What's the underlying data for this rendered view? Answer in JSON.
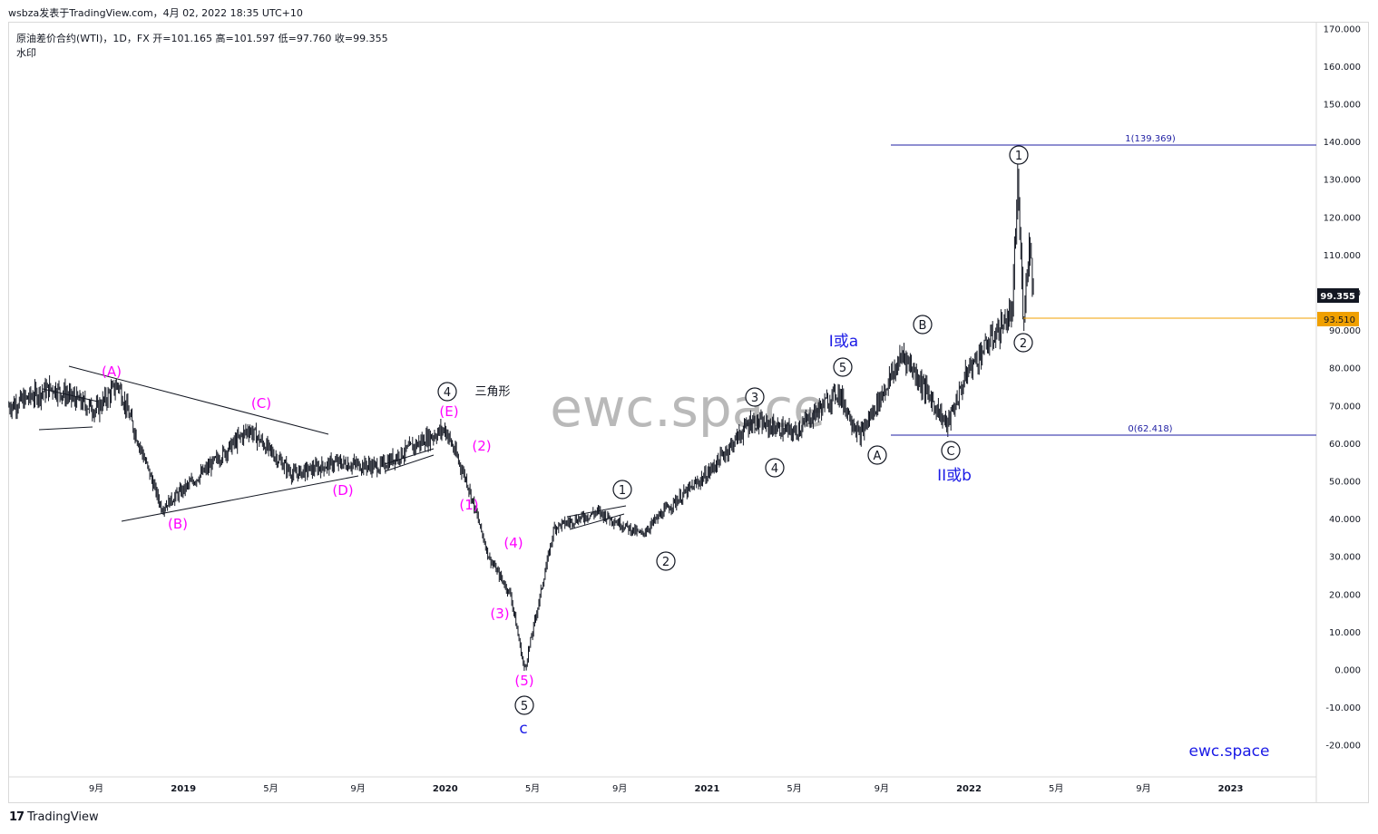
{
  "header": {
    "published": "wsbza发表于TradingView.com，4月 02, 2022 18:35 UTC+10"
  },
  "legend": {
    "line1": "原油差价合约(WTI)，1D，FX  开=101.165  高=101.597  低=97.760  收=99.355",
    "line2": "水印"
  },
  "watermark": "ewc.space",
  "brand_text": "ewc.space",
  "footer": {
    "logo": "17",
    "brand": "TradingView"
  },
  "colors": {
    "candle": "#131722",
    "wave_magenta": "#ff00ff",
    "wave_blue": "#1a1ae6",
    "fib_line": "#1f1fa3",
    "price_line": "#f0a000",
    "price_tag_bg": "#f0a000",
    "last_tag_bg": "#131722"
  },
  "chart_data": {
    "type": "line",
    "title": "原油差价合约(WTI)",
    "interval": "1D",
    "ohlc_last": {
      "open": 101.165,
      "high": 101.597,
      "low": 97.76,
      "close": 99.355
    },
    "y_axis": {
      "ticks": [
        "170.000",
        "160.000",
        "150.000",
        "140.000",
        "130.000",
        "120.000",
        "110.000",
        "100.000",
        "90.000",
        "80.000",
        "70.000",
        "60.000",
        "50.000",
        "40.000",
        "30.000",
        "20.000",
        "10.000",
        "0.000",
        "-10.000",
        "-20.000"
      ],
      "tick_values": [
        170,
        160,
        150,
        140,
        130,
        120,
        110,
        100,
        90,
        80,
        70,
        60,
        50,
        40,
        30,
        20,
        10,
        0,
        -10,
        -20
      ],
      "ylim": [
        -28,
        172
      ]
    },
    "x_axis": {
      "ticks": [
        "9月",
        "2019",
        "5月",
        "9月",
        "2020",
        "5月",
        "9月",
        "2021",
        "5月",
        "9月",
        "2022",
        "5月",
        "9月",
        "2023"
      ],
      "tick_dates": [
        "2018-09",
        "2019-01",
        "2019-05",
        "2019-09",
        "2020-01",
        "2020-05",
        "2020-09",
        "2021-01",
        "2021-05",
        "2021-09",
        "2022-01",
        "2022-05",
        "2022-09",
        "2023-01"
      ]
    },
    "series": [
      {
        "x": [
          "2018-05",
          "2018-07",
          "2018-09",
          "2018-10",
          "2018-12",
          "2019-02",
          "2019-04",
          "2019-06",
          "2019-08",
          "2019-10",
          "2019-12",
          "2020-01",
          "2020-02",
          "2020-03",
          "2020-04",
          "2020-04-20",
          "2020-06",
          "2020-08",
          "2020-10",
          "2020-11",
          "2021-01",
          "2021-03",
          "2021-05",
          "2021-07",
          "2021-08",
          "2021-10",
          "2021-12",
          "2022-01",
          "2022-03",
          "2022-03-08",
          "2022-03-16",
          "2022-03-24",
          "2022-04-01"
        ],
        "values": [
          70,
          75,
          69,
          76,
          43,
          53,
          64,
          52,
          55,
          54,
          61,
          64,
          50,
          30,
          20,
          0,
          38,
          42,
          36,
          42,
          52,
          66,
          63,
          74,
          62,
          84,
          65,
          80,
          95,
          130,
          93,
          114,
          99.355
        ]
      }
    ],
    "price_tags": {
      "last": "99.355",
      "horizontal": "93.510"
    },
    "fib": {
      "level_1": "1(139.369)",
      "level_0": "0(62.418)"
    },
    "wave_labels": {
      "magenta": [
        "(A)",
        "(C)",
        "(E)",
        "(B)",
        "(D)",
        "(1)",
        "(2)",
        "(3)",
        "(4)",
        "(5)"
      ],
      "circled": [
        "4",
        "5",
        "1",
        "2",
        "3",
        "4",
        "5",
        "A",
        "B",
        "C",
        "1",
        "2"
      ],
      "blue": [
        "c",
        "I或a",
        "II或b"
      ],
      "triangle_note": "三角形"
    }
  }
}
